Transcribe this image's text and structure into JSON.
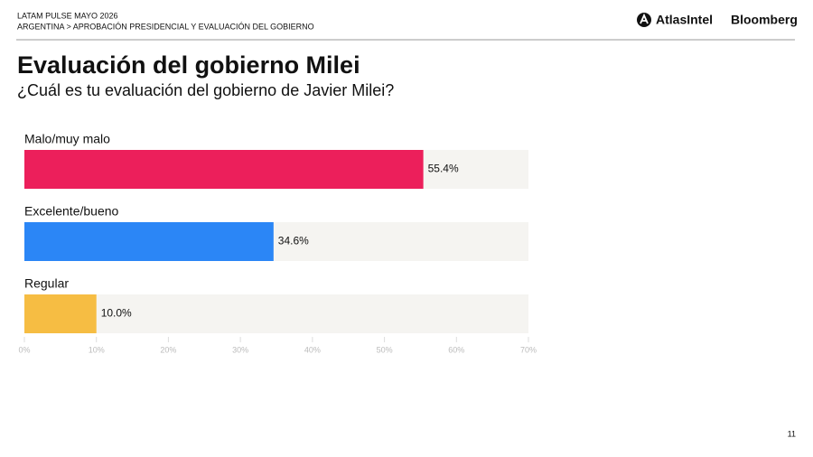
{
  "header": {
    "line1": "LATAM PULSE MAYO 2026",
    "line2": "ARGENTINA > APROBACIÓN PRESIDENCIAL Y EVALUACIÓN DEL GOBIERNO",
    "logo1": "AtlasIntel",
    "logo2": "Bloomberg"
  },
  "page_number": "11",
  "chart_data": {
    "type": "hbar",
    "title": "Evaluación del gobierno Milei",
    "subtitle": "¿Cuál es tu evaluación del gobierno de Javier Milei?",
    "categories": [
      "Malo/muy malo",
      "Excelente/bueno",
      "Regular"
    ],
    "values": [
      55.4,
      34.6,
      10.0
    ],
    "value_labels": [
      "55.4%",
      "34.6%",
      "10.0%"
    ],
    "colors": [
      "#ec1f5b",
      "#2b86f6",
      "#f6bd43"
    ],
    "track_color": "#f5f4f1",
    "xlim": [
      0,
      70
    ],
    "xticks": [
      {
        "value": 0,
        "label": "0%"
      },
      {
        "value": 10,
        "label": "10%"
      },
      {
        "value": 20,
        "label": "20%"
      },
      {
        "value": 30,
        "label": "30%"
      },
      {
        "value": 40,
        "label": "40%"
      },
      {
        "value": 50,
        "label": "50%"
      },
      {
        "value": 60,
        "label": "60%"
      },
      {
        "value": 70,
        "label": "70%"
      }
    ]
  }
}
